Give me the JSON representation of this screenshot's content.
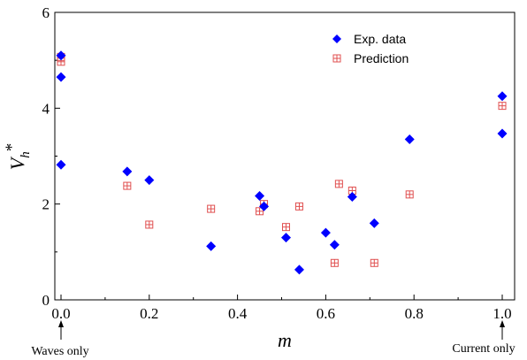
{
  "chart_data": {
    "type": "scatter",
    "title": "",
    "xlabel": "m",
    "ylabel": {
      "main": "V",
      "sub": "h",
      "sup": "*"
    },
    "xlim": [
      0.0,
      1.0
    ],
    "ylim": [
      0,
      6
    ],
    "x_ticks": [
      "0.0",
      "0.2",
      "0.4",
      "0.6",
      "0.8",
      "1.0"
    ],
    "y_ticks": [
      "0",
      "2",
      "4",
      "6"
    ],
    "grid": false,
    "legend_position": "top-right",
    "series": [
      {
        "name": "Exp. data",
        "marker": "diamond",
        "color": "#0000ff",
        "points": [
          [
            0.0,
            5.1
          ],
          [
            0.0,
            4.65
          ],
          [
            0.0,
            2.82
          ],
          [
            0.15,
            2.68
          ],
          [
            0.2,
            2.5
          ],
          [
            0.34,
            1.12
          ],
          [
            0.45,
            2.17
          ],
          [
            0.46,
            1.95
          ],
          [
            0.51,
            1.3
          ],
          [
            0.54,
            0.63
          ],
          [
            0.6,
            1.4
          ],
          [
            0.62,
            1.15
          ],
          [
            0.66,
            2.15
          ],
          [
            0.71,
            1.6
          ],
          [
            0.79,
            3.35
          ],
          [
            1.0,
            4.25
          ],
          [
            1.0,
            3.47
          ]
        ]
      },
      {
        "name": "Prediction",
        "marker": "boxed-plus",
        "color": "#e05050",
        "points": [
          [
            0.0,
            5.07
          ],
          [
            0.0,
            4.97
          ],
          [
            0.15,
            2.38
          ],
          [
            0.2,
            1.57
          ],
          [
            0.34,
            1.9
          ],
          [
            0.45,
            1.85
          ],
          [
            0.46,
            2.0
          ],
          [
            0.51,
            1.52
          ],
          [
            0.54,
            1.95
          ],
          [
            0.62,
            0.77
          ],
          [
            0.63,
            2.42
          ],
          [
            0.66,
            2.28
          ],
          [
            0.71,
            0.77
          ],
          [
            0.79,
            2.2
          ],
          [
            1.0,
            4.05
          ]
        ]
      }
    ],
    "annotations": [
      {
        "text": "Waves only",
        "x": 0.0
      },
      {
        "text": "Current only",
        "x": 1.0
      }
    ]
  }
}
